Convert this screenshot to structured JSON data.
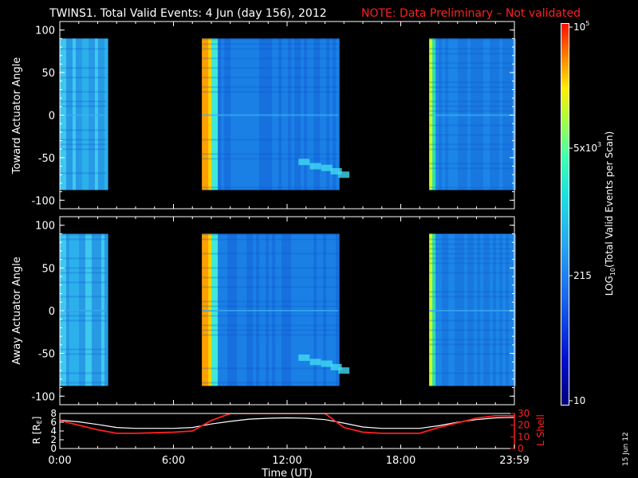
{
  "title": {
    "main": "TWINS1. Total Valid Events:  4 Jun (day 156), 2012",
    "note": "NOTE: Data Preliminary – Not validated",
    "note_color": "#ff2020"
  },
  "side_date": "15 Jun 12",
  "chart_data": [
    {
      "type": "heatmap",
      "panel": "toward",
      "ylabel": "Toward Actuator Angle",
      "ylim": [
        -110,
        110
      ],
      "yticks": [
        "100",
        "50",
        "0",
        "-50",
        "-100"
      ],
      "data_blocks_hours": [
        [
          -0.1,
          2.45
        ],
        [
          7.5,
          14.7
        ],
        [
          19.5,
          23.9
        ]
      ],
      "angle_range": [
        -88,
        90
      ]
    },
    {
      "type": "heatmap",
      "panel": "away",
      "ylabel": "Away Actuator Angle",
      "ylim": [
        -110,
        110
      ],
      "yticks": [
        "100",
        "50",
        "0",
        "-50",
        "-100"
      ],
      "data_blocks_hours": [
        [
          -0.1,
          2.45
        ],
        [
          7.5,
          14.7
        ],
        [
          19.5,
          23.9
        ]
      ],
      "angle_range": [
        -88,
        90
      ]
    },
    {
      "type": "line",
      "panel": "orbit",
      "ylabel_left": "R [R",
      "ylabel_left_sub": "E",
      "ylabel_left_end": "]",
      "ylabel_right": "L Shell",
      "ylim_left": [
        0,
        8
      ],
      "ylim_right": [
        0,
        30
      ],
      "yticks_left": [
        "8",
        "6",
        "4",
        "2",
        "0"
      ],
      "yticks_right": [
        "30",
        "20",
        "10",
        "0"
      ],
      "x_hours": [
        0,
        1,
        2,
        3,
        4,
        5,
        6,
        7,
        8,
        9,
        10,
        11,
        12,
        13,
        14,
        15,
        16,
        17,
        18,
        19,
        20,
        21,
        22,
        23,
        24
      ],
      "series": [
        {
          "id": "R",
          "color": "#ffffff",
          "axis": "left",
          "values": [
            6.5,
            6.1,
            5.5,
            4.8,
            4.6,
            4.6,
            4.6,
            4.8,
            5.6,
            6.2,
            6.7,
            6.9,
            7.0,
            6.9,
            6.6,
            5.8,
            4.9,
            4.6,
            4.6,
            4.6,
            5.2,
            6.0,
            6.6,
            7.0,
            7.1
          ]
        },
        {
          "id": "L",
          "color": "#ff2020",
          "axis": "right",
          "values": [
            24,
            20,
            16,
            13,
            13,
            13.5,
            14,
            15,
            24,
            30,
            30,
            30,
            30,
            30,
            30,
            18,
            14,
            13,
            13,
            13,
            18,
            22,
            26,
            28,
            28
          ]
        }
      ],
      "xlabel": "Time (UT)",
      "xticks": [
        "0:00",
        "6:00",
        "12:00",
        "18:00",
        "23:59"
      ]
    }
  ],
  "colorbar": {
    "label": "LOG",
    "label_sub": "10",
    "label_end": "(Total Valid Events per Scan)",
    "tick_top_base": "10",
    "tick_top_exp": "5",
    "tick_mid_base": "5x10",
    "tick_mid_exp": "3",
    "tick_low": "215",
    "tick_bottom": "10"
  }
}
